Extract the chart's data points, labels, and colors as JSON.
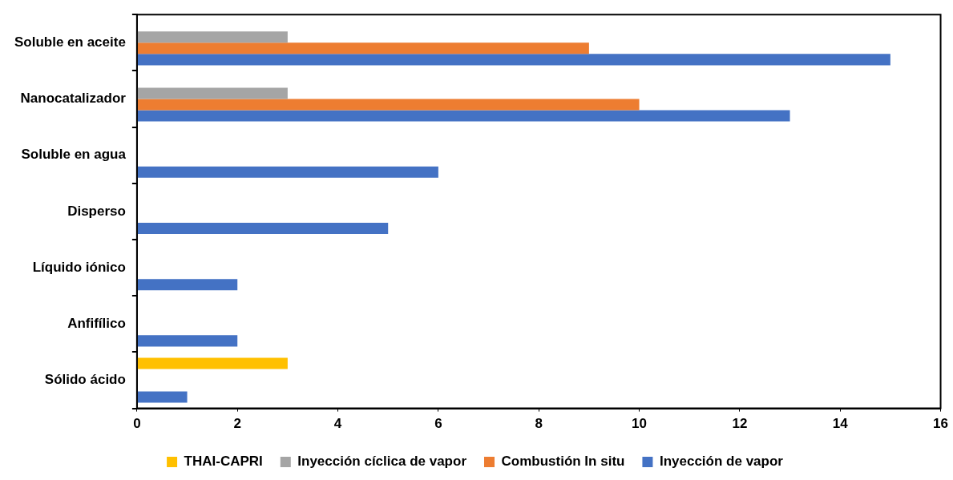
{
  "chart_data": {
    "type": "bar",
    "orientation": "horizontal",
    "categories": [
      "Soluble en aceite",
      "Nanocatalizador",
      "Soluble en agua",
      "Disperso",
      "Líquido iónico",
      "Anfifílico",
      "Sólido ácido"
    ],
    "series": [
      {
        "name": "THAI-CAPRI",
        "color": "#ffc000",
        "values": [
          null,
          null,
          null,
          null,
          null,
          null,
          3
        ]
      },
      {
        "name": "Inyección cíclica de vapor",
        "color": "#a5a5a5",
        "values": [
          3,
          3,
          null,
          null,
          null,
          null,
          null
        ]
      },
      {
        "name": "Combustión In situ",
        "color": "#ed7d31",
        "values": [
          9,
          10,
          null,
          null,
          null,
          null,
          null
        ]
      },
      {
        "name": "Inyección de vapor",
        "color": "#4472c4",
        "values": [
          15,
          13,
          6,
          5,
          2,
          2,
          1
        ]
      }
    ],
    "xlim": [
      0,
      16
    ],
    "xticks": [
      0,
      2,
      4,
      6,
      8,
      10,
      12,
      14,
      16
    ],
    "grid": false,
    "legend": "bottom"
  }
}
